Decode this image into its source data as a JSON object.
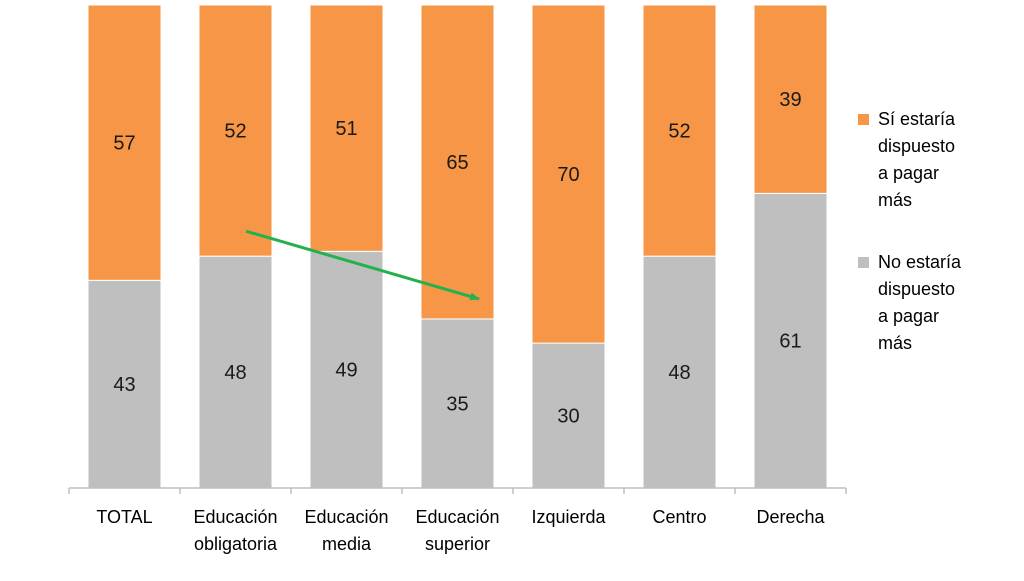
{
  "chart_data": {
    "type": "bar",
    "stacked": true,
    "normalized_percent": true,
    "categories": [
      [
        "TOTAL"
      ],
      [
        "Educación",
        "obligatoria"
      ],
      [
        "Educación",
        "media"
      ],
      [
        "Educación",
        "superior"
      ],
      [
        "Izquierda"
      ],
      [
        "Centro"
      ],
      [
        "Derecha"
      ]
    ],
    "series": [
      {
        "name": "No estaría dispuesto a pagar más",
        "color": "#bfbfbf",
        "values": [
          43,
          48,
          49,
          35,
          30,
          48,
          61
        ]
      },
      {
        "name": "Sí estaría dispuesto a pagar más",
        "color": "#f79646",
        "values": [
          57,
          52,
          51,
          65,
          70,
          52,
          39
        ]
      }
    ],
    "ylim": [
      0,
      100
    ],
    "title": "",
    "xlabel": "",
    "ylabel": "",
    "legend_position": "right",
    "annotation": {
      "type": "arrow",
      "color": "#22b14c",
      "from_category": "Educación obligatoria",
      "to_category": "Educación superior"
    }
  },
  "legend": {
    "items": [
      {
        "lines": [
          "Sí estaría",
          "dispuesto",
          "a pagar",
          "más"
        ],
        "color": "#f79646"
      },
      {
        "lines": [
          "No estaría",
          "dispuesto",
          "a pagar",
          "más"
        ],
        "color": "#bfbfbf"
      }
    ]
  }
}
